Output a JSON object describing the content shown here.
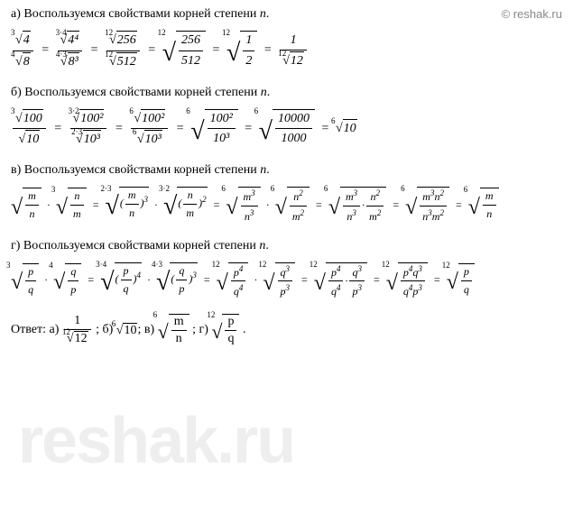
{
  "watermark_url": "© reshak.ru",
  "watermark_bg": "reshak.ru",
  "sections": {
    "a": {
      "label": "а)",
      "text": "Воспользуемся свойствами корней степени",
      "var": "n",
      "period": "."
    },
    "b": {
      "label": "б)",
      "text": "Воспользуемся свойствами корней степени",
      "var": "n",
      "period": "."
    },
    "v": {
      "label": "в)",
      "text": "Воспользуемся свойствами корней степени",
      "var": "n",
      "period": "."
    },
    "g": {
      "label": "г)",
      "text": "Воспользуемся свойствами корней степени",
      "var": "n",
      "period": "."
    }
  },
  "formulas": {
    "a": {
      "r1_idx": "3",
      "r1_val": "4",
      "r2_idx": "4",
      "r2_val": "8",
      "r3_idx": "3·4",
      "r3_val": "4⁴",
      "r4_idx": "4·3",
      "r4_val": "8³",
      "r5_idx": "12",
      "r5_val": "256",
      "r6_idx": "12",
      "r6_val": "512",
      "r7_idx": "12",
      "r7_n": "256",
      "r7_d": "512",
      "r8_idx": "12",
      "r8_n": "1",
      "r8_d": "2",
      "r9_n": "1",
      "r9_idx": "12",
      "r9_val": "12"
    },
    "b": {
      "r1_idx": "3",
      "r1_val": "100",
      "r2_val": "10",
      "r3_idx": "3·2",
      "r3_val": "100²",
      "r4_idx": "2·3",
      "r4_val": "10³",
      "r5_idx": "6",
      "r5_val": "100²",
      "r6_idx": "6",
      "r6_val": "10³",
      "r7_idx": "6",
      "r7_n": "100²",
      "r7_d": "10³",
      "r8_idx": "6",
      "r8_n": "10000",
      "r8_d": "1000",
      "r9_idx": "6",
      "r9_val": "10"
    },
    "v": {
      "m": "m",
      "n": "n",
      "idx1": "3",
      "idx2": "2·3",
      "idx3": "3·2",
      "idx4": "6"
    },
    "g": {
      "p": "p",
      "q": "q",
      "idx1": "3",
      "idx2": "4",
      "idx3": "3·4",
      "idx4": "4·3",
      "idx5": "12"
    }
  },
  "answer": {
    "label": "Ответ:",
    "a_label": "а)",
    "b_label": "б)",
    "v_label": "в)",
    "g_label": "г)",
    "semicolon": ";",
    "period": "."
  }
}
